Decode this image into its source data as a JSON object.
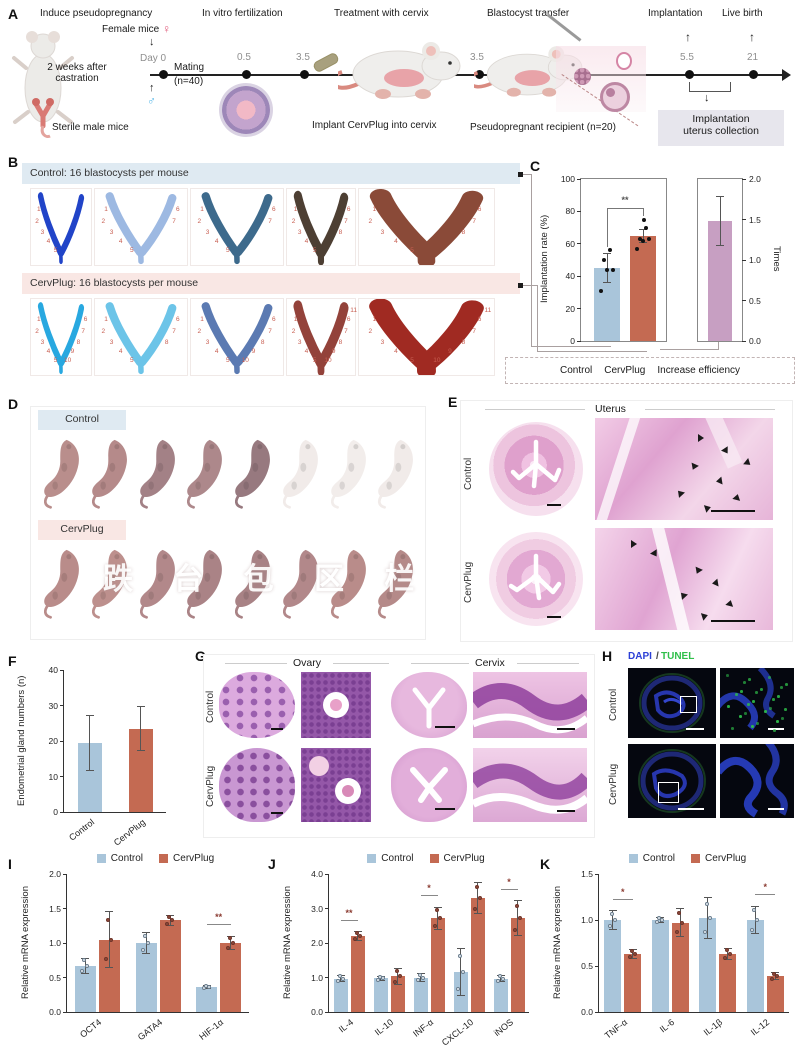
{
  "colors": {
    "bar_blue": "#a9c5da",
    "bar_red": "#c46a52",
    "bar_mauve": "#c79fc2",
    "banner_blue": "#dfeaf2",
    "banner_pink": "#f9e7e4",
    "collection_box": "#e7e6ed",
    "site_number_red": "#c85f52",
    "dapi_blue": "#2b3fd6",
    "tunel_green": "#2fbf4a"
  },
  "panel_a": {
    "label": "A",
    "induce_title": "Induce pseudopregnancy",
    "female_mice": "Female mice",
    "female_symbol": "♀",
    "male_symbol": "♂",
    "castration": "2 weeks after castration",
    "sterile": "Sterile male mice",
    "day0": "Day 0",
    "mating_line1": "Mating",
    "mating_line2": "(n=40)",
    "ivf_title": "In vitro fertilization",
    "t_05": "0.5",
    "t_35a": "3.5",
    "t_35b": "3.5",
    "t_55": "5.5",
    "t_21": "21",
    "treatment_title": "Treatment with cervix",
    "implant_label": "Implant CervPlug into cervix",
    "transfer_title": "Blastocyst transfer",
    "recipient": "Pseudopregnant recipient (n=20)",
    "implantation": "Implantation",
    "live_birth": "Live birth",
    "collection_line1": "Implantation",
    "collection_line2": "uterus collection"
  },
  "panel_b": {
    "label": "B",
    "control_header": "Control: 16 blastocysts per mouse",
    "cervplug_header": "CervPlug: 16 blastocysts per mouse",
    "widths": [
      62,
      94,
      94,
      70,
      137
    ],
    "rows": [
      {
        "name": "control",
        "uteri": [
          {
            "color": "#2144c8",
            "stroke": 9,
            "sites": 5
          },
          {
            "color": "#9db9e2",
            "stroke": 9,
            "sites": 7
          },
          {
            "color": "#3d6a8c",
            "stroke": 9,
            "sites": 7
          },
          {
            "color": "#4d3f33",
            "stroke": 12,
            "sites": 8
          },
          {
            "color": "#8a4a38",
            "stroke": 16,
            "sites": 8
          }
        ]
      },
      {
        "name": "cervplug",
        "uteri": [
          {
            "color": "#28a8e0",
            "stroke": 9,
            "sites": 10
          },
          {
            "color": "#6cc4e8",
            "stroke": 9,
            "sites": 8
          },
          {
            "color": "#5b7ab2",
            "stroke": 9,
            "sites": 10
          },
          {
            "color": "#93423a",
            "stroke": 13,
            "sites": 11
          },
          {
            "color": "#a02a22",
            "stroke": 17,
            "sites": 11
          }
        ]
      }
    ]
  },
  "panel_d": {
    "label": "D",
    "control_banner": "Control",
    "cervplug_banner": "CervPlug",
    "control_pups": [
      "#b98e8c",
      "#b58a8a",
      "#a38186",
      "#ad888b",
      "#97797f",
      "#f1ebe9",
      "#f2edeb",
      "#f1ebe9"
    ],
    "cervplug_pups": [
      "#b98c8a",
      "#bd908d",
      "#b2888a",
      "#aa8386",
      "#a88285",
      "#b2888a",
      "#b98c8a",
      "#b58a89"
    ],
    "watermark": "跌 台 包 区 栏"
  },
  "panel_e": {
    "label": "E",
    "title": "Uterus",
    "rows": [
      "Control",
      "CervPlug"
    ]
  },
  "panel_g": {
    "label": "G",
    "ovary_title": "Ovary",
    "cervix_title": "Cervix",
    "rows": [
      "Control",
      "CervPlug"
    ]
  },
  "panel_h": {
    "label": "H",
    "stain_blue": "DAPI",
    "stain_sep": "/",
    "stain_green": "TUNEL",
    "rows": [
      "Control",
      "CervPlug"
    ]
  },
  "chart_data": [
    {
      "id": "c",
      "panel": "C",
      "type": "bar-dual-axis",
      "left_axis": {
        "label": "Implantation rate (%)",
        "ylim": [
          0,
          100
        ],
        "yticks": [
          "0",
          "20",
          "40",
          "60",
          "80",
          "100"
        ]
      },
      "right_axis": {
        "label": "Times",
        "ylim": [
          0.0,
          2.0
        ],
        "yticks": [
          "0.0",
          "0.5",
          "1.0",
          "1.5",
          "2.0"
        ]
      },
      "groups": [
        {
          "name": "Control",
          "axis": "left",
          "value": 45,
          "error": 9,
          "points": [
            31,
            44,
            44,
            50,
            56
          ],
          "color": "#a9c5da"
        },
        {
          "name": "CervPlug",
          "axis": "left",
          "value": 65,
          "error": 4,
          "points": [
            57,
            62,
            63,
            63,
            70,
            75
          ],
          "color": "#c46a52"
        },
        {
          "name": "Increase efficiency",
          "axis": "right",
          "value": 1.48,
          "error": 0.3,
          "color": "#c79fc2"
        }
      ],
      "significance": [
        {
          "between": [
            "Control",
            "CervPlug"
          ],
          "label": "**"
        }
      ],
      "legend": [
        "Control",
        "CervPlug",
        "Increase efficiency"
      ]
    },
    {
      "id": "f",
      "panel": "F",
      "type": "bar",
      "ylabel": "Endometrial gland numbers (n)",
      "ylim": [
        0,
        40
      ],
      "yticks": [
        "0",
        "10",
        "20",
        "30",
        "40"
      ],
      "categories": [
        "Control",
        "CervPlug"
      ],
      "values": [
        19.5,
        23.5
      ],
      "errors": [
        7.8,
        6.2
      ],
      "bar_colors": [
        "#a9c5da",
        "#c46a52"
      ]
    },
    {
      "id": "i",
      "panel": "I",
      "type": "grouped-bar",
      "ylabel": "Relative mRNA expression",
      "ylim": [
        0,
        2.0
      ],
      "yticks": [
        "0.0",
        "0.5",
        "1.0",
        "1.5",
        "2.0"
      ],
      "categories": [
        "OCT4",
        "GATA4",
        "HIF-1α"
      ],
      "series": [
        {
          "name": "Control",
          "color": "#a9c5da",
          "values": [
            0.67,
            1.0,
            0.36
          ],
          "errors": [
            0.11,
            0.15,
            0.02
          ]
        },
        {
          "name": "CervPlug",
          "color": "#c46a52",
          "values": [
            1.05,
            1.33,
            1.0
          ],
          "errors": [
            0.4,
            0.07,
            0.1
          ]
        }
      ],
      "significance": [
        {
          "category": "HIF-1α",
          "label": "**"
        }
      ]
    },
    {
      "id": "j",
      "panel": "J",
      "type": "grouped-bar",
      "ylabel": "Relative mRNA expression",
      "ylim": [
        0,
        4.0
      ],
      "yticks": [
        "0.0",
        "1.0",
        "2.0",
        "3.0",
        "4.0"
      ],
      "categories": [
        "IL-4",
        "IL-10",
        "INF-α",
        "CXCL-10",
        "iNOS"
      ],
      "series": [
        {
          "name": "Control",
          "color": "#a9c5da",
          "values": [
            0.97,
            0.98,
            1.0,
            1.15,
            0.97
          ],
          "errors": [
            0.1,
            0.06,
            0.12,
            0.68,
            0.1
          ]
        },
        {
          "name": "CervPlug",
          "color": "#c46a52",
          "values": [
            2.2,
            1.03,
            2.72,
            3.3,
            2.72
          ],
          "errors": [
            0.12,
            0.22,
            0.32,
            0.45,
            0.5
          ]
        }
      ],
      "significance": [
        {
          "category": "IL-4",
          "label": "**"
        },
        {
          "category": "INF-α",
          "label": "*"
        },
        {
          "category": "iNOS",
          "label": "*"
        }
      ]
    },
    {
      "id": "k",
      "panel": "K",
      "type": "grouped-bar",
      "ylabel": "Relative mRNA expression",
      "ylim": [
        0,
        1.5
      ],
      "yticks": [
        "0.0",
        "0.5",
        "1.0",
        "1.5"
      ],
      "categories": [
        "TNF-α",
        "IL-6",
        "IL-1β",
        "IL-12"
      ],
      "series": [
        {
          "name": "Control",
          "color": "#a9c5da",
          "values": [
            1.0,
            1.0,
            1.02,
            1.0
          ],
          "errors": [
            0.1,
            0.03,
            0.22,
            0.15
          ]
        },
        {
          "name": "CervPlug",
          "color": "#c46a52",
          "values": [
            0.63,
            0.97,
            0.63,
            0.39
          ],
          "errors": [
            0.05,
            0.15,
            0.06,
            0.04
          ]
        }
      ],
      "significance": [
        {
          "category": "TNF-α",
          "label": "*"
        },
        {
          "category": "IL-12",
          "label": "*"
        }
      ]
    }
  ]
}
